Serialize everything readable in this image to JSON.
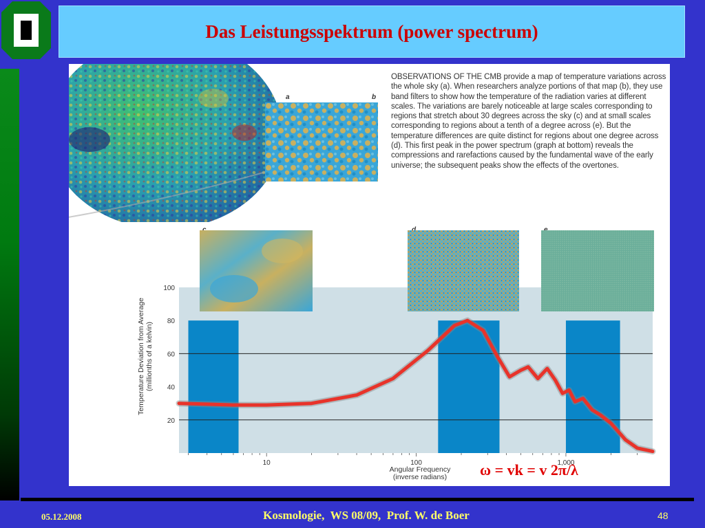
{
  "slide": {
    "title": "Das Leistungsspektrum (power spectrum)",
    "footer_date": "05.12.2008",
    "footer_center": "Kosmologie,  WS 08/09,  Prof. W. de Boer",
    "page_number": "48",
    "formula": "ω = vk = v 2π/λ"
  },
  "figure": {
    "caption": "OBSERVATIONS OF THE CMB provide a map of temperature variations across the whole sky (a). When researchers analyze portions of that map (b), they use band filters to show how the temperature of the radiation varies at different scales. The variations are barely noticeable at large scales corresponding to regions that stretch about 30 degrees across the sky (c) and at small scales corresponding to regions about a tenth of a degree across (e). But the temperature differences are quite distinct for regions about one degree across (d). This first peak in the power spectrum (graph at bottom) reveals the compressions and rarefactions caused by the fundamental wave of the early universe; the subsequent peaks show the effects of the overtones.",
    "panel_labels": [
      "a",
      "b",
      "c",
      "d",
      "e"
    ]
  },
  "chart_data": {
    "type": "line",
    "xlabel": "Angular Frequency\n(inverse radians)",
    "ylabel": "Temperature Deviation from Average\n(millionths of a kelvin)",
    "x_scale": "log",
    "xlim": [
      2.6,
      3800
    ],
    "ylim": [
      0,
      100
    ],
    "x_ticks": [
      10,
      100,
      1000
    ],
    "x_tick_labels": [
      "10",
      "100",
      "1,000"
    ],
    "y_ticks": [
      20,
      40,
      60,
      80,
      100
    ],
    "y_tick_labels": [
      "20",
      "40",
      "60",
      "80",
      "100"
    ],
    "bands": [
      [
        3,
        6.5
      ],
      [
        140,
        360
      ],
      [
        1000,
        2300
      ]
    ],
    "series": [
      {
        "color": "#e8332a",
        "x": [
          2.6,
          4,
          6,
          10,
          20,
          40,
          70,
          120,
          180,
          220,
          280,
          350,
          420,
          500,
          560,
          650,
          750,
          850,
          950,
          1050,
          1150,
          1300,
          1500,
          1700,
          2000,
          2500,
          3000,
          3800
        ],
        "y": [
          30,
          29.5,
          29,
          29,
          30,
          35,
          45,
          62,
          77,
          80,
          74,
          58,
          46,
          50,
          52,
          45,
          51,
          44,
          36,
          38,
          31,
          33,
          26,
          23,
          18,
          8,
          3,
          1
        ]
      }
    ]
  },
  "colors": {
    "background": "#3333cc",
    "title_box": "#66ccff",
    "title_text": "#cc0000",
    "footer_text": "#ffff66",
    "band": "#0a86c8",
    "plot_bg": "#cfdfe6"
  }
}
